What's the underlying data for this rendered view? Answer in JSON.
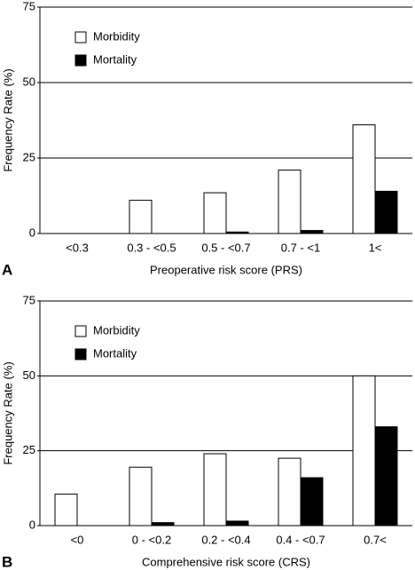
{
  "chart_data": [
    {
      "type": "bar",
      "panel": "A",
      "xlabel": "Preoperative risk score (PRS)",
      "ylabel": "Frequency Rate (%)",
      "categories": [
        "<0.3",
        "0.3 - <0.5",
        "0.5 - <0.7",
        "0.7 - <1",
        "1<"
      ],
      "series": [
        {
          "name": "Morbidity",
          "color": "#ffffff",
          "values": [
            0,
            11,
            13.5,
            21,
            36
          ]
        },
        {
          "name": "Mortality",
          "color": "#000000",
          "values": [
            0,
            0,
            0.5,
            1,
            14
          ]
        }
      ],
      "ylim": [
        0,
        75
      ],
      "yticks": [
        0,
        25,
        50,
        75
      ],
      "grid": true,
      "legend": "upper left"
    },
    {
      "type": "bar",
      "panel": "B",
      "xlabel": "Comprehensive risk score (CRS)",
      "ylabel": "Frequency Rate (%)",
      "categories": [
        "<0",
        "0 - <0.2",
        "0.2 - <0.4",
        "0.4 - <0.7",
        "0.7<"
      ],
      "series": [
        {
          "name": "Morbidity",
          "color": "#ffffff",
          "values": [
            10.5,
            19.5,
            24,
            22.5,
            50
          ]
        },
        {
          "name": "Mortality",
          "color": "#000000",
          "values": [
            0,
            1,
            1.5,
            16,
            33
          ]
        }
      ],
      "ylim": [
        0,
        75
      ],
      "yticks": [
        0,
        25,
        50,
        75
      ],
      "grid": true,
      "legend": "upper left"
    }
  ]
}
